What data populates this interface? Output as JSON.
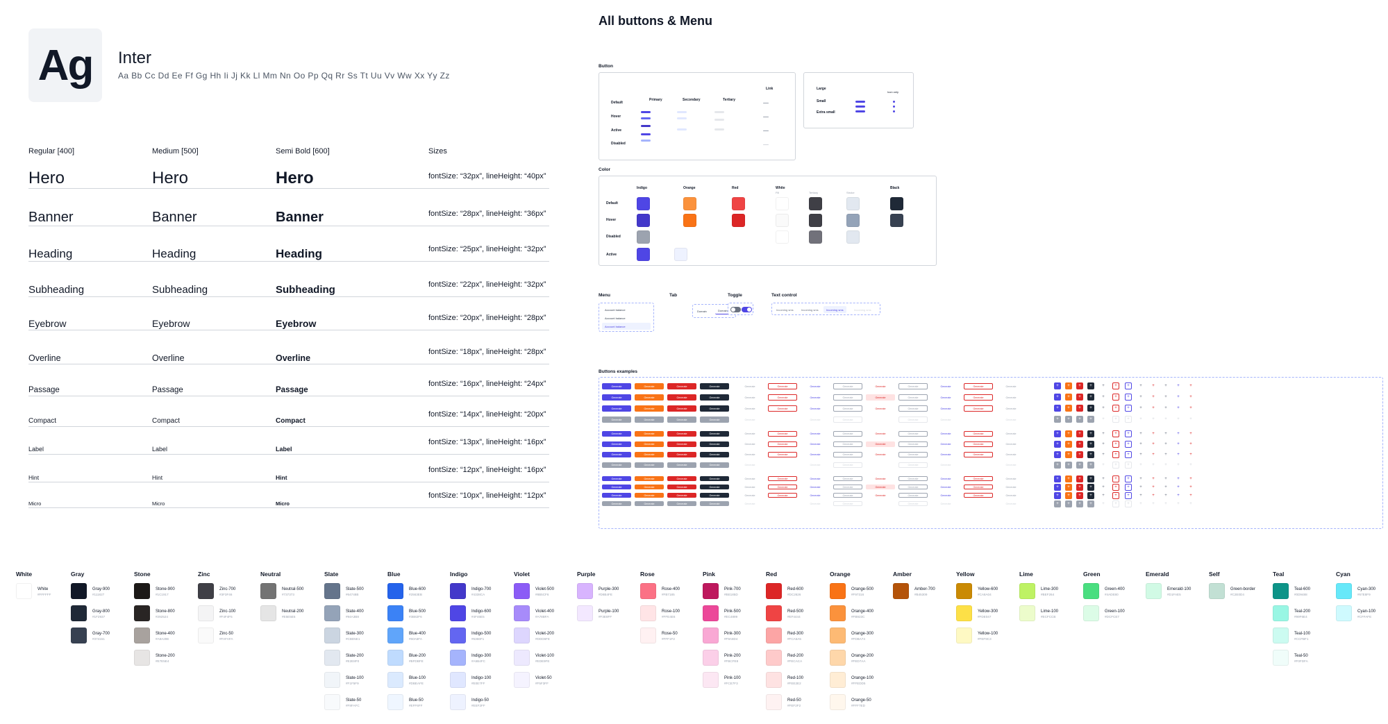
{
  "specimen": {
    "glyph": "Ag",
    "font_name": "Inter",
    "alphabet": "Aa Bb Cc Dd Ee Ff Gg Hh Ii Jj Kk Ll Mm Nn Oo Pp Qq Rr Ss Tt Uu Vv Ww Xx Yy Zz",
    "headers": {
      "regular": "Regular [400]",
      "medium": "Medium [500]",
      "semibold": "Semi Bold [600]",
      "sizes": "Sizes"
    },
    "rows": [
      {
        "name": "Hero",
        "size": 24,
        "spec": "fontSize: “32px”, lineHeight: “40px”"
      },
      {
        "name": "Banner",
        "size": 20,
        "spec": "fontSize: “28px”, lineHeight: “36px”"
      },
      {
        "name": "Heading",
        "size": 17,
        "spec": "fontSize: “25px”, lineHeight: “32px”"
      },
      {
        "name": "Subheading",
        "size": 15,
        "spec": "fontSize: “22px”, lineHeight: “32px”"
      },
      {
        "name": "Eyebrow",
        "size": 14,
        "spec": "fontSize: “20px”, lineHeight: “28px”"
      },
      {
        "name": "Overline",
        "size": 12.5,
        "spec": "fontSize: “18px”, lineHeight: “28px”"
      },
      {
        "name": "Passage",
        "size": 11.5,
        "spec": "fontSize: “16px”, lineHeight: “24px”"
      },
      {
        "name": "Compact",
        "size": 10,
        "spec": "fontSize: “14px”, lineHeight: “20px”"
      },
      {
        "name": "Label",
        "size": 9,
        "spec": "fontSize: “13px”, lineHeight: “16px”"
      },
      {
        "name": "Hint",
        "size": 8.5,
        "spec": "fontSize: “12px”, lineHeight: “16px”"
      },
      {
        "name": "Micro",
        "size": 7.5,
        "spec": "fontSize: “10px”, lineHeight: “12px”"
      }
    ]
  },
  "palette": [
    {
      "name": "White",
      "colors": [
        {
          "label": "White",
          "hex": "#FFFFFF"
        }
      ]
    },
    {
      "name": "Gray",
      "colors": [
        {
          "label": "Gray-900",
          "hex": "#111827"
        },
        {
          "label": "Gray-800",
          "hex": "#1F2937"
        },
        {
          "label": "Gray-700",
          "hex": "#374151"
        }
      ]
    },
    {
      "name": "Stone",
      "colors": [
        {
          "label": "Stone-900",
          "hex": "#1C1917"
        },
        {
          "label": "Stone-800",
          "hex": "#292524"
        },
        {
          "label": "Stone-400",
          "hex": "#A8A29E"
        },
        {
          "label": "Stone-200",
          "hex": "#E7E5E4"
        }
      ]
    },
    {
      "name": "Zinc",
      "colors": [
        {
          "label": "Zinc-700",
          "hex": "#3F3F46"
        },
        {
          "label": "Zinc-100",
          "hex": "#F4F4F5"
        },
        {
          "label": "Zinc-50",
          "hex": "#FAFAFA"
        }
      ]
    },
    {
      "name": "Neutral",
      "colors": [
        {
          "label": "Neutral-500",
          "hex": "#737373"
        },
        {
          "label": "Neutral-200",
          "hex": "#E5E5E5"
        }
      ]
    },
    {
      "name": "Slate",
      "colors": [
        {
          "label": "Slate-500",
          "hex": "#64748B"
        },
        {
          "label": "Slate-400",
          "hex": "#94A3B8"
        },
        {
          "label": "Slate-300",
          "hex": "#CBD5E1"
        },
        {
          "label": "Slate-200",
          "hex": "#E2E8F0"
        },
        {
          "label": "Slate-100",
          "hex": "#F1F5F9"
        },
        {
          "label": "Slate-50",
          "hex": "#F8FAFC"
        }
      ]
    },
    {
      "name": "Blue",
      "colors": [
        {
          "label": "Blue-600",
          "hex": "#2563EB"
        },
        {
          "label": "Blue-500",
          "hex": "#3B82F6"
        },
        {
          "label": "Blue-400",
          "hex": "#60A5FA"
        },
        {
          "label": "Blue-200",
          "hex": "#BFDBFE"
        },
        {
          "label": "Blue-100",
          "hex": "#DBEAFE"
        },
        {
          "label": "Blue-50",
          "hex": "#EFF6FF"
        }
      ]
    },
    {
      "name": "Indigo",
      "colors": [
        {
          "label": "Indigo-700",
          "hex": "#4338CA"
        },
        {
          "label": "Indigo-600",
          "hex": "#4F46E5"
        },
        {
          "label": "Indigo-500",
          "hex": "#6366F1"
        },
        {
          "label": "Indigo-300",
          "hex": "#A5B4FC"
        },
        {
          "label": "Indigo-100",
          "hex": "#E0E7FF"
        },
        {
          "label": "Indigo-50",
          "hex": "#EEF2FF"
        }
      ]
    },
    {
      "name": "Violet",
      "colors": [
        {
          "label": "Violet-500",
          "hex": "#8B5CF6"
        },
        {
          "label": "Violet-400",
          "hex": "#A78BFA"
        },
        {
          "label": "Violet-200",
          "hex": "#DDD6FE"
        },
        {
          "label": "Violet-100",
          "hex": "#EDE9FE"
        },
        {
          "label": "Violet-50",
          "hex": "#F5F3FF"
        }
      ]
    },
    {
      "name": "Purple",
      "colors": [
        {
          "label": "Purple-300",
          "hex": "#D8B4FE"
        },
        {
          "label": "Purple-100",
          "hex": "#F3E8FF"
        }
      ]
    },
    {
      "name": "Rose",
      "colors": [
        {
          "label": "Rose-400",
          "hex": "#FB7185"
        },
        {
          "label": "Rose-100",
          "hex": "#FFE4E6"
        },
        {
          "label": "Rose-50",
          "hex": "#FFF1F2"
        }
      ]
    },
    {
      "name": "Pink",
      "colors": [
        {
          "label": "Pink-700",
          "hex": "#BE185D"
        },
        {
          "label": "Pink-500",
          "hex": "#EC4899"
        },
        {
          "label": "Pink-300",
          "hex": "#F9A8D4"
        },
        {
          "label": "Pink-200",
          "hex": "#FBCFE8"
        },
        {
          "label": "Pink-100",
          "hex": "#FCE7F3"
        }
      ]
    },
    {
      "name": "Red",
      "colors": [
        {
          "label": "Red-600",
          "hex": "#DC2626"
        },
        {
          "label": "Red-500",
          "hex": "#EF4444"
        },
        {
          "label": "Red-300",
          "hex": "#FCA5A5"
        },
        {
          "label": "Red-200",
          "hex": "#FECACA"
        },
        {
          "label": "Red-100",
          "hex": "#FEE2E2"
        },
        {
          "label": "Red-50",
          "hex": "#FEF2F2"
        }
      ]
    },
    {
      "name": "Orange",
      "colors": [
        {
          "label": "Orange-500",
          "hex": "#F97316"
        },
        {
          "label": "Orange-400",
          "hex": "#FB923C"
        },
        {
          "label": "Orange-300",
          "hex": "#FDBA74"
        },
        {
          "label": "Orange-200",
          "hex": "#FED7AA"
        },
        {
          "label": "Orange-100",
          "hex": "#FFEDD5"
        },
        {
          "label": "Orange-50",
          "hex": "#FFF7ED"
        }
      ]
    },
    {
      "name": "Amber",
      "colors": [
        {
          "label": "Amber-700",
          "hex": "#B45309"
        }
      ]
    },
    {
      "name": "Yellow",
      "colors": [
        {
          "label": "Yellow-600",
          "hex": "#CA8A04"
        },
        {
          "label": "Yellow-300",
          "hex": "#FDE047"
        },
        {
          "label": "Yellow-100",
          "hex": "#FEF9C3"
        }
      ]
    },
    {
      "name": "Lime",
      "colors": [
        {
          "label": "Lime-300",
          "hex": "#BEF264"
        },
        {
          "label": "Lime-100",
          "hex": "#ECFCCB"
        }
      ]
    },
    {
      "name": "Green",
      "colors": [
        {
          "label": "Green-400",
          "hex": "#4ADE80"
        },
        {
          "label": "Green-100",
          "hex": "#DCFCE7"
        }
      ]
    },
    {
      "name": "Emerald",
      "colors": [
        {
          "label": "Emerald-100",
          "hex": "#D1FAE5"
        }
      ]
    },
    {
      "name": "Self",
      "colors": [
        {
          "label": "Green-border",
          "hex": "#C2E0D4"
        }
      ]
    },
    {
      "name": "Teal",
      "colors": [
        {
          "label": "Teal-600",
          "hex": "#0D9488"
        },
        {
          "label": "Teal-200",
          "hex": "#99F6E4"
        },
        {
          "label": "Teal-100",
          "hex": "#CCFBF1"
        },
        {
          "label": "Teal-50",
          "hex": "#F0FDFA"
        }
      ]
    },
    {
      "name": "Cyan",
      "colors": [
        {
          "label": "Cyan-300",
          "hex": "#67E8F9"
        },
        {
          "label": "Cyan-100",
          "hex": "#CFFAFE"
        }
      ]
    }
  ],
  "panel": {
    "title": "All buttons & Menu",
    "button_label": "Button",
    "color_label": "Color",
    "menu_label": "Menu",
    "tab_label": "Tab",
    "toggle_label": "Toggle",
    "text_control_label": "Text control",
    "examples_label": "Buttons examples",
    "button_states": [
      "Default",
      "Hover",
      "Active",
      "Disabled"
    ],
    "button_types": [
      "Primary",
      "Secondary",
      "Tertiary",
      "Link"
    ],
    "sizes": [
      "Large",
      "Small",
      "Extra small"
    ],
    "icon_only": "Icon only",
    "color_cols": [
      "Indigo",
      "Orange",
      "Red",
      "White",
      "Black"
    ],
    "white_sub": [
      "Fill",
      "Tertiary",
      "Stroke"
    ],
    "color_states": [
      "Default",
      "Hover",
      "Disabled",
      "Active"
    ],
    "menu_items": [
      "Account balance",
      "Account balance",
      "Account balance"
    ],
    "tabs": [
      "Domain",
      "Domain"
    ],
    "text_controls": [
      "Incoming sms",
      "Incoming sms",
      "Incoming sms",
      "Incoming sms"
    ],
    "example_label": "Generate",
    "colors": {
      "indigo": "#4F46E5",
      "orange": "#F97316",
      "red": "#DC2626",
      "black": "#1F2937",
      "disabled": "#9CA3AF"
    }
  }
}
